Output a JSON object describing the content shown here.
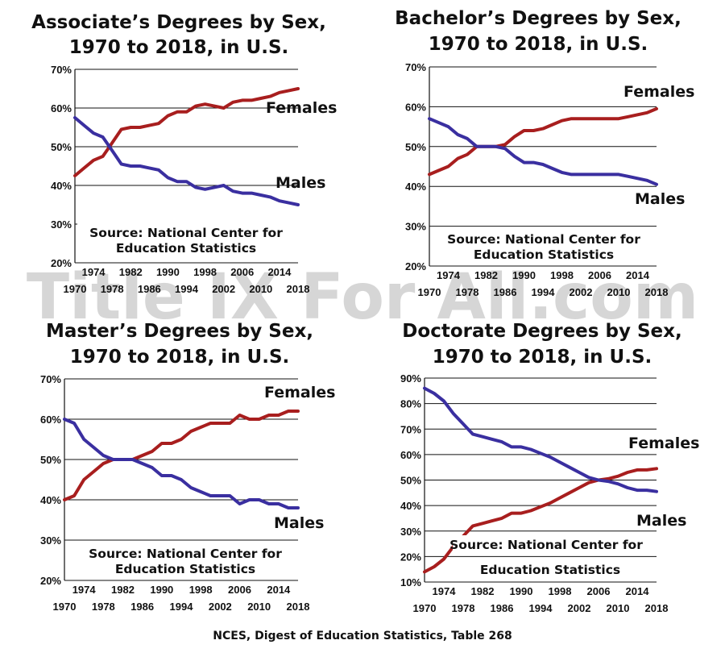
{
  "footer": "NCES, Digest of Education Statistics, Table 268",
  "watermark": "Title IX For All.com",
  "colors": {
    "females": "#a81e1e",
    "males": "#3a2fa0",
    "grid": "#111111"
  },
  "chart_data": [
    {
      "type": "line",
      "title_line1": "Associate’s Degrees by Sex,",
      "title_line2": "1970 to 2018, in U.S.",
      "ylim": [
        20,
        70
      ],
      "yticks": [
        "20%",
        "30%",
        "40%",
        "50%",
        "60%",
        "70%"
      ],
      "xlim": [
        1970,
        2018
      ],
      "xticks_upper": [
        "1974",
        "1982",
        "1990",
        "1998",
        "2006",
        "2014"
      ],
      "xticks_lower": [
        "1970",
        "1978",
        "1986",
        "1994",
        "2002",
        "2010",
        "2018"
      ],
      "source_line1": "Source: National Center for",
      "source_line2": "Education Statistics",
      "series": [
        {
          "name": "Females",
          "x": [
            1970,
            1972,
            1974,
            1976,
            1978,
            1980,
            1982,
            1984,
            1986,
            1988,
            1990,
            1992,
            1994,
            1996,
            1998,
            2000,
            2002,
            2004,
            2006,
            2008,
            2010,
            2012,
            2014,
            2016,
            2018
          ],
          "values": [
            42.5,
            44.5,
            46.5,
            47.5,
            51,
            54.5,
            55,
            55,
            55.5,
            56,
            58,
            59,
            59,
            60.5,
            61,
            60.5,
            60,
            61.5,
            62,
            62,
            62.5,
            63,
            64,
            64.5,
            65
          ]
        },
        {
          "name": "Males",
          "x": [
            1970,
            1972,
            1974,
            1976,
            1978,
            1980,
            1982,
            1984,
            1986,
            1988,
            1990,
            1992,
            1994,
            1996,
            1998,
            2000,
            2002,
            2004,
            2006,
            2008,
            2010,
            2012,
            2014,
            2016,
            2018
          ],
          "values": [
            57.5,
            55.5,
            53.5,
            52.5,
            49,
            45.5,
            45,
            45,
            44.5,
            44,
            42,
            41,
            41,
            39.5,
            39,
            39.5,
            40,
            38.5,
            38,
            38,
            37.5,
            37,
            36,
            35.5,
            35
          ]
        }
      ]
    },
    {
      "type": "line",
      "title_line1": "Bachelor’s Degrees by Sex,",
      "title_line2": "1970 to 2018, in U.S.",
      "ylim": [
        20,
        70
      ],
      "yticks": [
        "20%",
        "30%",
        "40%",
        "50%",
        "60%",
        "70%"
      ],
      "xlim": [
        1970,
        2018
      ],
      "xticks_upper": [
        "1974",
        "1982",
        "1990",
        "1998",
        "2006",
        "2014"
      ],
      "xticks_lower": [
        "1970",
        "1978",
        "1986",
        "1994",
        "2002",
        "2010",
        "2018"
      ],
      "source_line1": "Source: National Center for",
      "source_line2": "Education Statistics",
      "series": [
        {
          "name": "Females",
          "x": [
            1970,
            1972,
            1974,
            1976,
            1978,
            1980,
            1982,
            1984,
            1986,
            1988,
            1990,
            1992,
            1994,
            1996,
            1998,
            2000,
            2002,
            2004,
            2006,
            2008,
            2010,
            2012,
            2014,
            2016,
            2018
          ],
          "values": [
            43,
            44,
            45,
            47,
            48,
            50,
            50,
            50,
            50.5,
            52.5,
            54,
            54,
            54.5,
            55.5,
            56.5,
            57,
            57,
            57,
            57,
            57,
            57,
            57.5,
            58,
            58.5,
            59.5
          ]
        },
        {
          "name": "Males",
          "x": [
            1970,
            1972,
            1974,
            1976,
            1978,
            1980,
            1982,
            1984,
            1986,
            1988,
            1990,
            1992,
            1994,
            1996,
            1998,
            2000,
            2002,
            2004,
            2006,
            2008,
            2010,
            2012,
            2014,
            2016,
            2018
          ],
          "values": [
            57,
            56,
            55,
            53,
            52,
            50,
            50,
            50,
            49.5,
            47.5,
            46,
            46,
            45.5,
            44.5,
            43.5,
            43,
            43,
            43,
            43,
            43,
            43,
            42.5,
            42,
            41.5,
            40.5
          ]
        }
      ]
    },
    {
      "type": "line",
      "title_line1": "Master’s Degrees by Sex,",
      "title_line2": "1970 to 2018, in U.S.",
      "ylim": [
        20,
        70
      ],
      "yticks": [
        "20%",
        "30%",
        "40%",
        "50%",
        "60%",
        "70%"
      ],
      "xlim": [
        1970,
        2018
      ],
      "xticks_upper": [
        "1974",
        "1982",
        "1990",
        "1998",
        "2006",
        "2014"
      ],
      "xticks_lower": [
        "1970",
        "1978",
        "1986",
        "1994",
        "2002",
        "2010",
        "2018"
      ],
      "source_line1": "Source: National Center for",
      "source_line2": "Education Statistics",
      "series": [
        {
          "name": "Females",
          "x": [
            1970,
            1972,
            1974,
            1976,
            1978,
            1980,
            1982,
            1984,
            1986,
            1988,
            1990,
            1992,
            1994,
            1996,
            1998,
            2000,
            2002,
            2004,
            2006,
            2008,
            2010,
            2012,
            2014,
            2016,
            2018
          ],
          "values": [
            40,
            41,
            45,
            47,
            49,
            50,
            50,
            50,
            51,
            52,
            54,
            54,
            55,
            57,
            58,
            59,
            59,
            59,
            61,
            60,
            60,
            61,
            61,
            62,
            62
          ]
        },
        {
          "name": "Males",
          "x": [
            1970,
            1972,
            1974,
            1976,
            1978,
            1980,
            1982,
            1984,
            1986,
            1988,
            1990,
            1992,
            1994,
            1996,
            1998,
            2000,
            2002,
            2004,
            2006,
            2008,
            2010,
            2012,
            2014,
            2016,
            2018
          ],
          "values": [
            60,
            59,
            55,
            53,
            51,
            50,
            50,
            50,
            49,
            48,
            46,
            46,
            45,
            43,
            42,
            41,
            41,
            41,
            39,
            40,
            40,
            39,
            39,
            38,
            38
          ]
        }
      ]
    },
    {
      "type": "line",
      "title_line1": "Doctorate Degrees by Sex,",
      "title_line2": "1970 to 2018, in U.S.",
      "ylim": [
        10,
        90
      ],
      "yticks": [
        "10%",
        "20%",
        "30%",
        "40%",
        "50%",
        "60%",
        "70%",
        "80%",
        "90%"
      ],
      "xlim": [
        1970,
        2018
      ],
      "xticks_upper": [
        "1974",
        "1982",
        "1990",
        "1998",
        "2006",
        "2014"
      ],
      "xticks_lower": [
        "1970",
        "1978",
        "1986",
        "1994",
        "2002",
        "2010",
        "2018"
      ],
      "source_line1": "Source: National Center for",
      "source_line2": "Education Statistics",
      "series": [
        {
          "name": "Females",
          "x": [
            1970,
            1972,
            1974,
            1976,
            1978,
            1980,
            1982,
            1984,
            1986,
            1988,
            1990,
            1992,
            1994,
            1996,
            1998,
            2000,
            2002,
            2004,
            2006,
            2008,
            2010,
            2012,
            2014,
            2016,
            2018
          ],
          "values": [
            14,
            16,
            19,
            24,
            28,
            32,
            33,
            34,
            35,
            37,
            37,
            38,
            39.5,
            41,
            43,
            45,
            47,
            49,
            50,
            50.5,
            51.5,
            53,
            54,
            54,
            54.5
          ]
        },
        {
          "name": "Males",
          "x": [
            1970,
            1972,
            1974,
            1976,
            1978,
            1980,
            1982,
            1984,
            1986,
            1988,
            1990,
            1992,
            1994,
            1996,
            1998,
            2000,
            2002,
            2004,
            2006,
            2008,
            2010,
            2012,
            2014,
            2016,
            2018
          ],
          "values": [
            86,
            84,
            81,
            76,
            72,
            68,
            67,
            66,
            65,
            63,
            63,
            62,
            60.5,
            59,
            57,
            55,
            53,
            51,
            50,
            49.5,
            48.5,
            47,
            46,
            46,
            45.5
          ]
        }
      ]
    }
  ],
  "panel_labels": [
    {
      "females": "Females",
      "males": "Males"
    },
    {
      "females": "Females",
      "males": "Males"
    },
    {
      "females": "Females",
      "males": "Males"
    },
    {
      "females": "Females",
      "males": "Males"
    }
  ]
}
